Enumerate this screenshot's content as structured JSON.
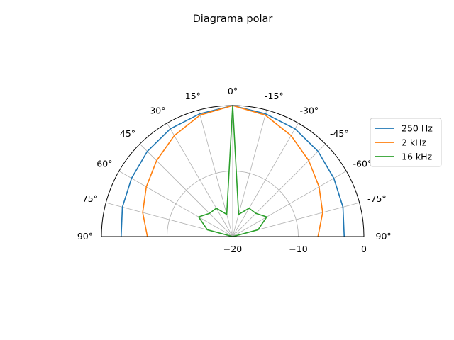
{
  "chart_data": {
    "type": "line",
    "projection": "polar-half",
    "title": "Diagrama polar",
    "theta_unit": "deg",
    "theta_ticks": [
      90,
      75,
      60,
      45,
      30,
      15,
      0,
      -15,
      -30,
      -45,
      -60,
      -75,
      -90
    ],
    "theta_tick_labels": [
      "90°",
      "75°",
      "60°",
      "45°",
      "30°",
      "15°",
      "0°",
      "-15°",
      "-30°",
      "-45°",
      "-60°",
      "-75°",
      "-90°"
    ],
    "r_range": [
      -20,
      0
    ],
    "r_ticks": [
      -20,
      -10,
      0
    ],
    "r_tick_labels": [
      "−20",
      "−10",
      "0"
    ],
    "grid": true,
    "legend": {
      "position": "right"
    },
    "x": [
      -90,
      -75,
      -60,
      -45,
      -30,
      -15,
      0,
      15,
      30,
      45,
      60,
      75,
      90
    ],
    "series": [
      {
        "name": "250 Hz",
        "color": "#1f77b4",
        "values": [
          -3,
          -2.6,
          -2.2,
          -1.6,
          -1.0,
          -0.6,
          0,
          -0.6,
          -1.0,
          -1.6,
          -2.2,
          -2.6,
          -3
        ]
      },
      {
        "name": "2 kHz",
        "color": "#ff7f0e",
        "values": [
          -7,
          -5.8,
          -4.8,
          -3.6,
          -2.2,
          -0.8,
          0,
          -0.8,
          -2.2,
          -3.6,
          -4.8,
          -5.8,
          -7
        ]
      },
      {
        "name": "16 kHz",
        "color": "#2ca02c",
        "values": [
          -20,
          -16,
          -14,
          -15,
          -15,
          -16.5,
          0,
          -16.5,
          -15,
          -15,
          -14,
          -16,
          -20
        ]
      }
    ]
  }
}
